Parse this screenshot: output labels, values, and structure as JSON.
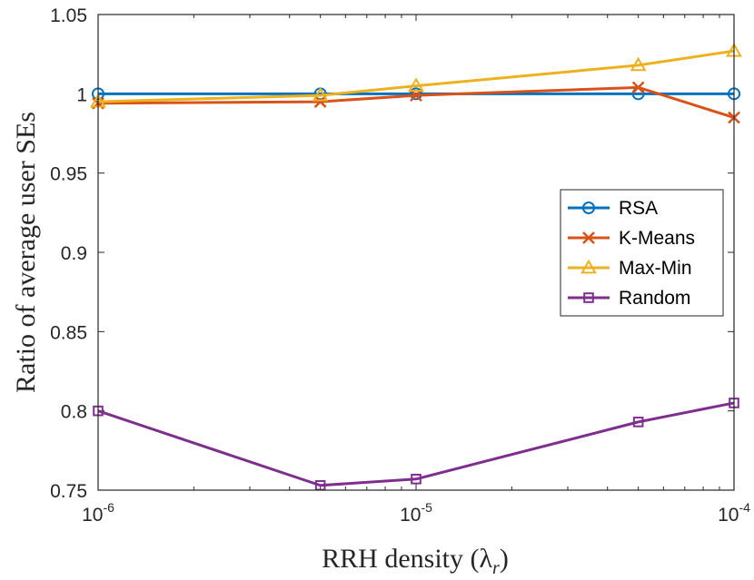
{
  "chart_data": {
    "type": "line",
    "x_scale": "log",
    "x": [
      1e-06,
      5e-06,
      1e-05,
      5e-05,
      0.0001
    ],
    "xlim": [
      1e-06,
      0.0001
    ],
    "ylim": [
      0.75,
      1.05
    ],
    "x_ticks": [
      {
        "value": 1e-06,
        "base": "10",
        "exp": "-6"
      },
      {
        "value": 1e-05,
        "base": "10",
        "exp": "-5"
      },
      {
        "value": 0.0001,
        "base": "10",
        "exp": "-4"
      }
    ],
    "y_ticks": [
      {
        "value": 0.75,
        "label": "0.75"
      },
      {
        "value": 0.8,
        "label": "0.8"
      },
      {
        "value": 0.85,
        "label": "0.85"
      },
      {
        "value": 0.9,
        "label": "0.9"
      },
      {
        "value": 0.95,
        "label": "0.95"
      },
      {
        "value": 1.0,
        "label": "1"
      },
      {
        "value": 1.05,
        "label": "1.05"
      }
    ],
    "xlabel": "RRH density (λ",
    "xlabel_sub": "r",
    "xlabel_close": ")",
    "ylabel": "Ratio of average user SEs",
    "legend_position": "right",
    "series": [
      {
        "name": "RSA",
        "color": "#0072BD",
        "marker": "circle",
        "values": [
          1.0,
          1.0,
          1.0,
          1.0,
          1.0
        ]
      },
      {
        "name": "K-Means",
        "color": "#D95319",
        "marker": "x",
        "values": [
          0.994,
          0.995,
          0.999,
          1.004,
          0.985
        ]
      },
      {
        "name": "Max-Min",
        "color": "#EDB120",
        "marker": "triangle",
        "values": [
          0.995,
          0.999,
          1.005,
          1.018,
          1.027
        ]
      },
      {
        "name": "Random",
        "color": "#7E2F8E",
        "marker": "square",
        "values": [
          0.8,
          0.753,
          0.757,
          0.793,
          0.805
        ]
      }
    ]
  }
}
